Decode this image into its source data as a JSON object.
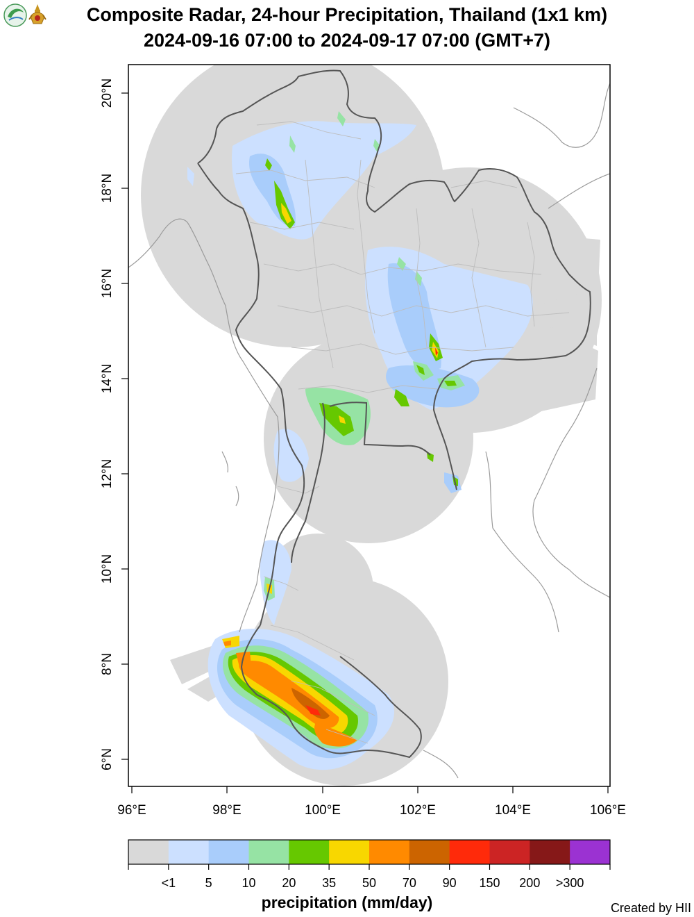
{
  "title_line1": "Composite Radar, 24-hour Precipitation, Thailand (1x1 km)",
  "title_line2": "2024-09-16 07:00 to 2024-09-17 07:00 (GMT+7)",
  "axes": {
    "longitude_labels": [
      "96°E",
      "98°E",
      "100°E",
      "102°E",
      "104°E",
      "106°E"
    ],
    "latitude_labels": [
      "6°N",
      "8°N",
      "10°N",
      "12°N",
      "14°N",
      "16°N",
      "18°N",
      "20°N"
    ]
  },
  "colorbar": {
    "title": "precipitation (mm/day)",
    "labels": [
      "<1",
      "5",
      "10",
      "20",
      "35",
      "50",
      "70",
      "90",
      "150",
      "200",
      ">300"
    ],
    "colors": [
      "#d9d9d9",
      "#cce0ff",
      "#a9cdfb",
      "#96e3a4",
      "#66c800",
      "#f8d700",
      "#ff8a00",
      "#cc6400",
      "#ff2a0a",
      "#cc2424",
      "#861818",
      "#9b32d2"
    ]
  },
  "map_colors": {
    "radar_coverage": "#d9d9d9",
    "country_border": "#555555",
    "province_border": "#bdbdbd",
    "coastline": "#9a9a9a"
  },
  "credit": "Created by HII"
}
